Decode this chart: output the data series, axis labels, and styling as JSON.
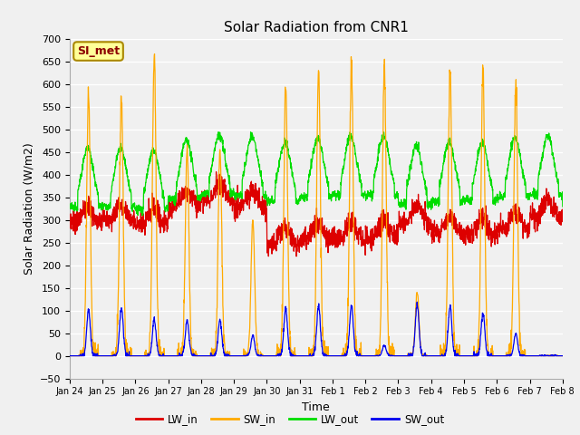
{
  "title": "Solar Radiation from CNR1",
  "xlabel": "Time",
  "ylabel": "Solar Radiation (W/m2)",
  "ylim": [
    -50,
    700
  ],
  "fig_bg_color": "#f0f0f0",
  "plot_bg_color": "#f0f0f0",
  "grid_color": "#ffffff",
  "line_colors": {
    "LW_in": "#dd0000",
    "SW_in": "#ffaa00",
    "LW_out": "#00dd00",
    "SW_out": "#0000ee"
  },
  "annotation_text": "SI_met",
  "annotation_color": "#8b0000",
  "annotation_bg": "#ffff99",
  "annotation_border": "#aa8800",
  "x_tick_labels": [
    "Jan 24",
    "Jan 25",
    "Jan 26",
    "Jan 27",
    "Jan 28",
    "Jan 29",
    "Jan 30",
    "Jan 31",
    "Feb 1",
    "Feb 2",
    "Feb 3",
    "Feb 4",
    "Feb 5",
    "Feb 6",
    "Feb 7",
    "Feb 8"
  ],
  "legend_entries": [
    "LW_in",
    "SW_in",
    "LW_out",
    "SW_out"
  ],
  "day_peaks_SW": [
    580,
    575,
    658,
    460,
    455,
    300,
    598,
    632,
    636,
    636,
    140,
    636,
    636,
    600,
    0
  ],
  "day_peaks_SWout": [
    100,
    107,
    80,
    78,
    80,
    45,
    106,
    112,
    112,
    24,
    112,
    110,
    95,
    50,
    0
  ],
  "LW_in_base": [
    295,
    300,
    290,
    330,
    345,
    330,
    250,
    258,
    258,
    263,
    295,
    275,
    268,
    282,
    310
  ],
  "LW_out_base": [
    330,
    330,
    325,
    348,
    358,
    355,
    342,
    352,
    355,
    356,
    336,
    342,
    342,
    352,
    357
  ]
}
